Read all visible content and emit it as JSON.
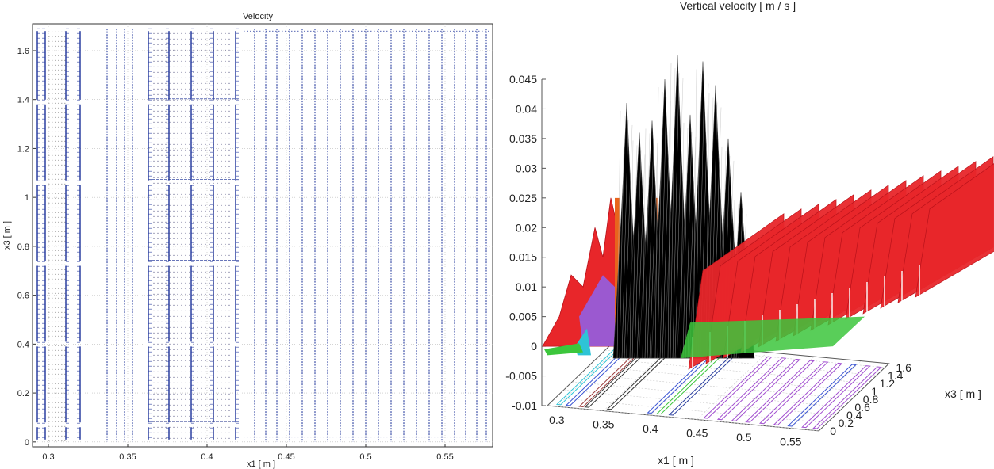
{
  "chart_data": [
    {
      "type": "quiver",
      "title": "Velocity",
      "xlabel": "x1 [ m ]",
      "ylabel": "x3 [ m ]",
      "xlim": [
        0.29,
        0.58
      ],
      "ylim": [
        -0.02,
        1.71
      ],
      "grid": true,
      "xticks": [
        0.3,
        0.35,
        0.4,
        0.45,
        0.5,
        0.55
      ],
      "xtick_labels": [
        "0.3",
        "0.35",
        "0.4",
        "0.45",
        "0.5",
        "0.55"
      ],
      "yticks": [
        0,
        0.2,
        0.4,
        0.6,
        0.8,
        1,
        1.2,
        1.4,
        1.6
      ],
      "ytick_labels": [
        "0",
        "0.2",
        "0.4",
        "0.6",
        "0.8",
        "1",
        "1.2",
        "1.4",
        "1.6"
      ],
      "arrow_color": "#2b3fa0",
      "dense_columns": [
        0.293,
        0.298,
        0.311,
        0.32,
        0.363,
        0.376,
        0.39,
        0.404,
        0.418
      ],
      "sparse_columns": [
        0.337,
        0.343,
        0.348,
        0.353,
        0.43,
        0.437,
        0.444,
        0.452,
        0.46,
        0.468,
        0.476,
        0.484,
        0.492,
        0.5,
        0.508,
        0.516,
        0.524,
        0.532,
        0.54,
        0.548,
        0.556,
        0.563,
        0.57,
        0.576
      ],
      "cell_boundaries_y": [
        0.07,
        0.4,
        0.73,
        1.06,
        1.39
      ]
    },
    {
      "type": "surface3d",
      "title": "Vertical velocity [ m / s ]",
      "xlabel": "x1 [ m ]",
      "ylabel": "x3 [ m ]",
      "zlim": [
        -0.01,
        0.045
      ],
      "xticks": [
        0.3,
        0.35,
        0.4,
        0.45,
        0.5,
        0.55
      ],
      "xtick_labels": [
        "0.3",
        "0.35",
        "0.4",
        "0.45",
        "0.5",
        "0.55"
      ],
      "yticks": [
        0,
        0.2,
        0.4,
        0.6,
        0.8,
        1,
        1.2,
        1.4,
        1.6
      ],
      "ytick_labels": [
        "0",
        "0.2",
        "0.4",
        "0.6",
        "0.8",
        "1",
        "1.2",
        "1.4",
        "1.6"
      ],
      "zticks": [
        -0.01,
        -0.005,
        0,
        0.005,
        0.01,
        0.015,
        0.02,
        0.025,
        0.03,
        0.035,
        0.04,
        0.045
      ],
      "ztick_labels": [
        "-0.01",
        "-0.005",
        "0",
        "0.005",
        "0.01",
        "0.015",
        "0.02",
        "0.025",
        "0.03",
        "0.035",
        "0.04",
        "0.045"
      ],
      "black_peaks": [
        {
          "x1": 0.395,
          "w": 0.041
        },
        {
          "x1": 0.4,
          "w": 0.036
        },
        {
          "x1": 0.405,
          "w": 0.038
        },
        {
          "x1": 0.41,
          "w": 0.045
        },
        {
          "x1": 0.415,
          "w": 0.049
        },
        {
          "x1": 0.42,
          "w": 0.039
        },
        {
          "x1": 0.425,
          "w": 0.048
        },
        {
          "x1": 0.43,
          "w": 0.044
        },
        {
          "x1": 0.435,
          "w": 0.035
        },
        {
          "x1": 0.44,
          "w": 0.026
        }
      ],
      "red_ridge_count": 14,
      "red_ridge_height": 0.017,
      "colors": {
        "black": "#000000",
        "red": "#e8262a",
        "orange": "#e8641c",
        "purple": "#9b59d0",
        "green": "#3cc63c",
        "cyan": "#2ec4d6"
      }
    }
  ]
}
